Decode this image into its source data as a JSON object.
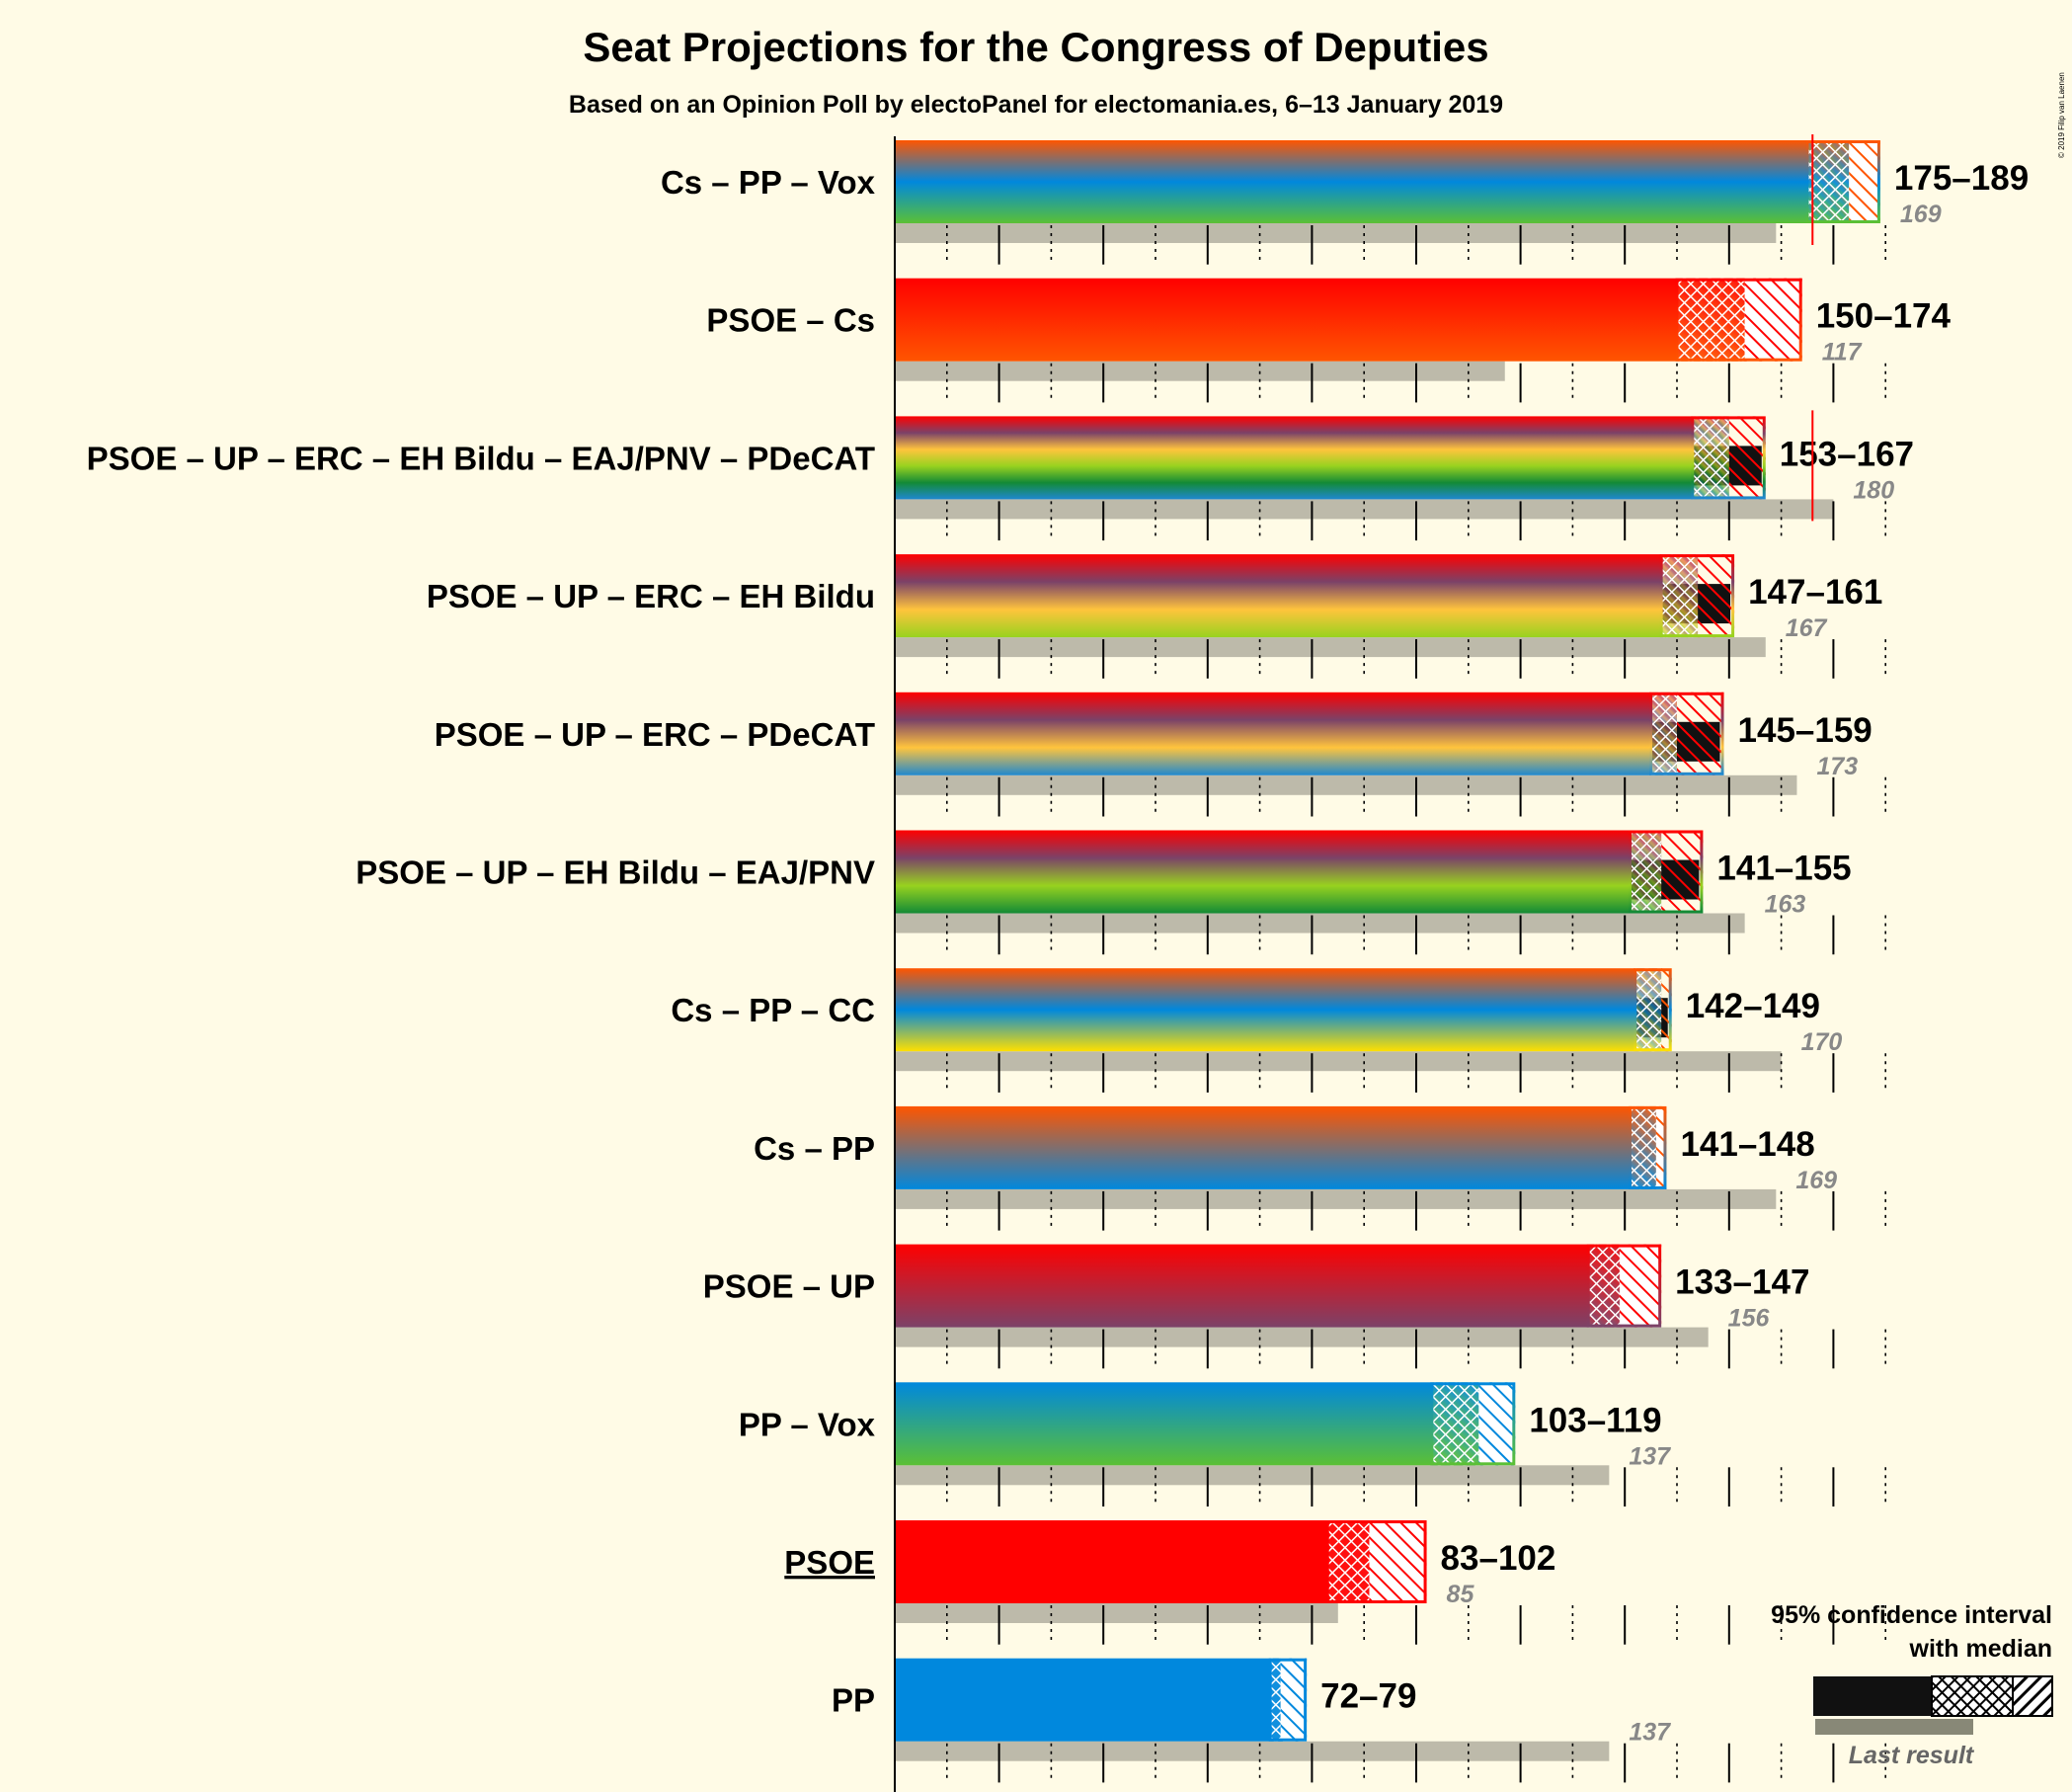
{
  "title": "Seat Projections for the Congress of Deputies",
  "subtitle": "Based on an Opinion Poll by electoPanel for electomania.es, 6–13 January 2019",
  "copyright": "© 2019 Filip van Laenen",
  "legend": {
    "ci_label_line1": "95% confidence interval",
    "ci_label_line2": "with median",
    "last_result_label": "Last result"
  },
  "colors": {
    "Cs": "#FF5500",
    "PP": "#0088DD",
    "Vox": "#5BC035",
    "PSOE": "#FF0000",
    "UP": "#7B4268",
    "ERC": "#FFC43D",
    "EH Bildu": "#98D21F",
    "EAJ/PNV": "#138A36",
    "PDeCAT": "#1F88CF",
    "CC": "#FFE000",
    "last_result": "#BDBAAA",
    "majority": "#FF0000",
    "background": "#FFFBE6"
  },
  "chart_data": {
    "type": "bar",
    "orientation": "horizontal",
    "majority_line": 176,
    "x_axis_max": 190,
    "ticks_major_every": 20,
    "ticks_minor_every": 10,
    "rows": [
      {
        "label": "Cs – PP – Vox",
        "underlined": false,
        "parties": [
          "Cs",
          "PP",
          "Vox"
        ],
        "low": 175,
        "median": 183,
        "high": 189,
        "range_label": "175–189",
        "last": 169,
        "last_label": "169",
        "black_core": false
      },
      {
        "label": "PSOE – Cs",
        "underlined": false,
        "parties": [
          "PSOE",
          "Cs"
        ],
        "low": 150,
        "median": 163,
        "high": 174,
        "range_label": "150–174",
        "last": 117,
        "last_label": "117",
        "black_core": false
      },
      {
        "label": "PSOE – UP – ERC – EH Bildu – EAJ/PNV – PDeCAT",
        "underlined": false,
        "parties": [
          "PSOE",
          "UP",
          "ERC",
          "EH Bildu",
          "EAJ/PNV",
          "PDeCAT"
        ],
        "low": 153,
        "median": 160,
        "high": 167,
        "range_label": "153–167",
        "last": 180,
        "last_label": "180",
        "black_core": true
      },
      {
        "label": "PSOE – UP – ERC – EH Bildu",
        "underlined": false,
        "parties": [
          "PSOE",
          "UP",
          "ERC",
          "EH Bildu"
        ],
        "low": 147,
        "median": 154,
        "high": 161,
        "range_label": "147–161",
        "last": 167,
        "last_label": "167",
        "black_core": true
      },
      {
        "label": "PSOE – UP – ERC – PDeCAT",
        "underlined": false,
        "parties": [
          "PSOE",
          "UP",
          "ERC",
          "PDeCAT"
        ],
        "low": 145,
        "median": 150,
        "high": 159,
        "range_label": "145–159",
        "last": 173,
        "last_label": "173",
        "black_core": true
      },
      {
        "label": "PSOE – UP – EH Bildu – EAJ/PNV",
        "underlined": false,
        "parties": [
          "PSOE",
          "UP",
          "EH Bildu",
          "EAJ/PNV"
        ],
        "low": 141,
        "median": 147,
        "high": 155,
        "range_label": "141–155",
        "last": 163,
        "last_label": "163",
        "black_core": true
      },
      {
        "label": "Cs – PP – CC",
        "underlined": false,
        "parties": [
          "Cs",
          "PP",
          "CC"
        ],
        "low": 142,
        "median": 147,
        "high": 149,
        "range_label": "142–149",
        "last": 170,
        "last_label": "170",
        "black_core": true
      },
      {
        "label": "Cs – PP",
        "underlined": false,
        "parties": [
          "Cs",
          "PP"
        ],
        "low": 141,
        "median": 146,
        "high": 148,
        "range_label": "141–148",
        "last": 169,
        "last_label": "169",
        "black_core": false
      },
      {
        "label": "PSOE – UP",
        "underlined": false,
        "parties": [
          "PSOE",
          "UP"
        ],
        "low": 133,
        "median": 139,
        "high": 147,
        "range_label": "133–147",
        "last": 156,
        "last_label": "156",
        "black_core": false
      },
      {
        "label": "PP – Vox",
        "underlined": false,
        "parties": [
          "PP",
          "Vox"
        ],
        "low": 103,
        "median": 112,
        "high": 119,
        "range_label": "103–119",
        "last": 137,
        "last_label": "137",
        "black_core": false
      },
      {
        "label": "PSOE",
        "underlined": true,
        "parties": [
          "PSOE"
        ],
        "low": 83,
        "median": 91,
        "high": 102,
        "range_label": "83–102",
        "last": 85,
        "last_label": "85",
        "black_core": false
      },
      {
        "label": "PP",
        "underlined": false,
        "parties": [
          "PP"
        ],
        "low": 72,
        "median": 74,
        "high": 79,
        "range_label": "72–79",
        "last": 137,
        "last_label": "137",
        "black_core": false
      }
    ]
  }
}
